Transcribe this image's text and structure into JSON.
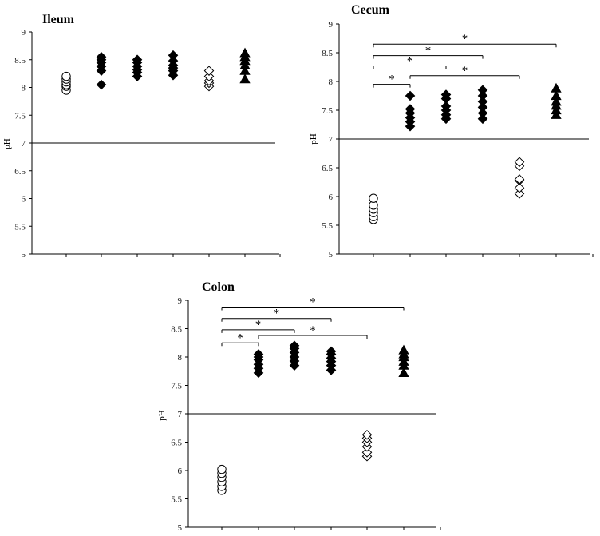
{
  "chart_data": [
    {
      "type": "scatter",
      "title": "Ileum",
      "ylabel": "pH",
      "ylim": [
        5,
        9
      ],
      "yticks": [
        "5",
        "5.5",
        "6",
        "6.5",
        "7",
        "7.5",
        "8",
        "8.5",
        "9"
      ],
      "reference_line": 7,
      "groups": [
        {
          "marker": "circle-open",
          "values": [
            7.95,
            8.02,
            8.05,
            8.1,
            8.15,
            8.2
          ]
        },
        {
          "marker": "diamond-filled",
          "values": [
            8.05,
            8.3,
            8.38,
            8.45,
            8.5,
            8.55
          ]
        },
        {
          "marker": "diamond-filled",
          "values": [
            8.2,
            8.27,
            8.32,
            8.38,
            8.45,
            8.5
          ]
        },
        {
          "marker": "diamond-filled",
          "values": [
            8.22,
            8.3,
            8.35,
            8.4,
            8.48,
            8.58
          ]
        },
        {
          "marker": "diamond-open",
          "values": [
            8.02,
            8.08,
            8.12,
            8.2,
            8.3
          ]
        },
        {
          "marker": "triangle-filled",
          "values": [
            8.15,
            8.3,
            8.4,
            8.48,
            8.55,
            8.62
          ]
        }
      ],
      "significance": []
    },
    {
      "type": "scatter",
      "title": "Cecum",
      "ylabel": "pH",
      "ylim": [
        5,
        9
      ],
      "yticks": [
        "5",
        "5.5",
        "6",
        "6.5",
        "7",
        "7.5",
        "8",
        "8.5",
        "9"
      ],
      "reference_line": 7,
      "groups": [
        {
          "marker": "circle-open",
          "values": [
            5.6,
            5.65,
            5.72,
            5.78,
            5.85,
            5.97
          ]
        },
        {
          "marker": "diamond-filled",
          "values": [
            7.22,
            7.3,
            7.37,
            7.45,
            7.52,
            7.75
          ]
        },
        {
          "marker": "diamond-filled",
          "values": [
            7.35,
            7.42,
            7.5,
            7.57,
            7.7,
            7.77
          ]
        },
        {
          "marker": "diamond-filled",
          "values": [
            7.35,
            7.45,
            7.55,
            7.65,
            7.75,
            7.85
          ]
        },
        {
          "marker": "diamond-open",
          "values": [
            6.05,
            6.15,
            6.28,
            6.3,
            6.53,
            6.6
          ]
        },
        {
          "marker": "triangle-filled",
          "values": [
            7.42,
            7.5,
            7.58,
            7.65,
            7.75,
            7.88
          ]
        }
      ],
      "significance": [
        {
          "from": 1,
          "to": 2,
          "level": 7.95,
          "label": "*"
        },
        {
          "from": 1,
          "to": 3,
          "level": 8.27,
          "label": "*"
        },
        {
          "from": 1,
          "to": 4,
          "level": 8.45,
          "label": "*"
        },
        {
          "from": 1,
          "to": 6,
          "level": 8.65,
          "label": "*"
        },
        {
          "from": 2,
          "to": 5,
          "level": 8.1,
          "label": "*"
        }
      ]
    },
    {
      "type": "scatter",
      "title": "Colon",
      "ylabel": "pH",
      "ylim": [
        5,
        9
      ],
      "yticks": [
        "5",
        "5.5",
        "6",
        "6.5",
        "7",
        "7.5",
        "8",
        "8.5",
        "9"
      ],
      "reference_line": 7,
      "groups": [
        {
          "marker": "circle-open",
          "values": [
            5.65,
            5.72,
            5.8,
            5.88,
            5.95,
            6.02
          ]
        },
        {
          "marker": "diamond-filled",
          "values": [
            7.72,
            7.8,
            7.87,
            7.95,
            8.0,
            8.05
          ]
        },
        {
          "marker": "diamond-filled",
          "values": [
            7.85,
            7.93,
            8.0,
            8.08,
            8.15,
            8.2
          ]
        },
        {
          "marker": "diamond-filled",
          "values": [
            7.77,
            7.85,
            7.92,
            7.98,
            8.05,
            8.1
          ]
        },
        {
          "marker": "diamond-open",
          "values": [
            6.25,
            6.32,
            6.42,
            6.5,
            6.57,
            6.63
          ]
        },
        {
          "marker": "triangle-filled",
          "values": [
            7.72,
            7.85,
            7.92,
            8.0,
            8.05,
            8.12
          ]
        }
      ],
      "significance": [
        {
          "from": 1,
          "to": 2,
          "level": 8.25,
          "label": "*"
        },
        {
          "from": 1,
          "to": 3,
          "level": 8.48,
          "label": "*"
        },
        {
          "from": 1,
          "to": 4,
          "level": 8.68,
          "label": "*"
        },
        {
          "from": 1,
          "to": 6,
          "level": 8.88,
          "label": "*"
        },
        {
          "from": 2,
          "to": 5,
          "level": 8.38,
          "label": "*"
        }
      ]
    }
  ]
}
